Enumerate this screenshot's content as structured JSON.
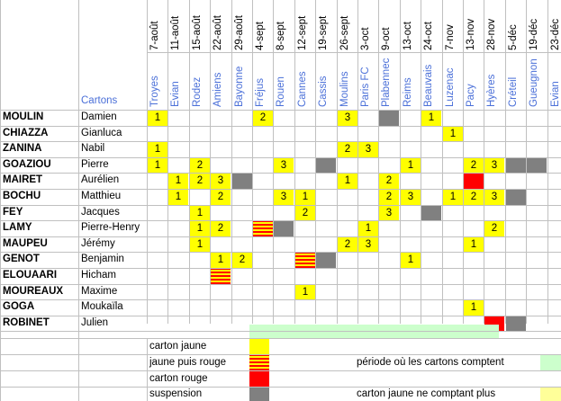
{
  "header": {
    "cartons_label": "Cartons",
    "columns": [
      {
        "date": "7-août",
        "opponent": "Troyes"
      },
      {
        "date": "11-août",
        "opponent": "Evian"
      },
      {
        "date": "15-août",
        "opponent": "Rodez"
      },
      {
        "date": "22-août",
        "opponent": "Amiens"
      },
      {
        "date": "29-août",
        "opponent": "Bayonne"
      },
      {
        "date": "4-sept",
        "opponent": "Fréjus"
      },
      {
        "date": "8-sept",
        "opponent": "Rouen"
      },
      {
        "date": "12-sept",
        "opponent": "Cannes"
      },
      {
        "date": "19-sept",
        "opponent": "Cassis"
      },
      {
        "date": "26-sept",
        "opponent": "Moulins"
      },
      {
        "date": "3-oct",
        "opponent": "Paris FC"
      },
      {
        "date": "9-oct",
        "opponent": "Plabennec"
      },
      {
        "date": "13-oct",
        "opponent": "Reims"
      },
      {
        "date": "24-oct",
        "opponent": "Beauvais"
      },
      {
        "date": "7-nov",
        "opponent": "Luzenac"
      },
      {
        "date": "13-nov",
        "opponent": "Pacy"
      },
      {
        "date": "28-nov",
        "opponent": "Hyères"
      },
      {
        "date": "5-déc",
        "opponent": "Créteil"
      },
      {
        "date": "19-déc",
        "opponent": "Gueugnon"
      },
      {
        "date": "23-déc",
        "opponent": "Evian"
      }
    ]
  },
  "players": [
    {
      "last": "MOULIN",
      "first": "Damien",
      "cells": {
        "0": [
          "y",
          "1"
        ],
        "5": [
          "y",
          "2"
        ],
        "9": [
          "y",
          "3"
        ],
        "11": [
          "g",
          ""
        ],
        "13": [
          "y",
          "1"
        ]
      }
    },
    {
      "last": "CHIAZZA",
      "first": "Gianluca",
      "cells": {
        "14": [
          "y",
          "1"
        ]
      }
    },
    {
      "last": "ZANINA",
      "first": "Nabil",
      "cells": {
        "0": [
          "y",
          "1"
        ],
        "9": [
          "y",
          "2"
        ],
        "10": [
          "y",
          "3"
        ]
      }
    },
    {
      "last": "GOAZIOU",
      "first": "Pierre",
      "cells": {
        "0": [
          "y",
          "1"
        ],
        "2": [
          "y",
          "2"
        ],
        "6": [
          "y",
          "3"
        ],
        "8": [
          "g",
          ""
        ],
        "12": [
          "y",
          "1"
        ],
        "15": [
          "y",
          "2"
        ],
        "16": [
          "y",
          "3"
        ],
        "17": [
          "g",
          ""
        ],
        "18": [
          "g",
          ""
        ]
      }
    },
    {
      "last": "MAIRET",
      "first": "Aurélien",
      "cells": {
        "1": [
          "y",
          "1"
        ],
        "2": [
          "y",
          "2"
        ],
        "3": [
          "y",
          "3"
        ],
        "4": [
          "g",
          ""
        ],
        "9": [
          "y",
          "1"
        ],
        "11": [
          "y",
          "2"
        ],
        "15": [
          "r",
          ""
        ]
      }
    },
    {
      "last": "BOCHU",
      "first": "Matthieu",
      "cells": {
        "1": [
          "y",
          "1"
        ],
        "3": [
          "y",
          "2"
        ],
        "6": [
          "y",
          "3"
        ],
        "7": [
          "y",
          "1"
        ],
        "11": [
          "y",
          "2"
        ],
        "12": [
          "y",
          "3"
        ],
        "14": [
          "y",
          "1"
        ],
        "15": [
          "y",
          "2"
        ],
        "16": [
          "y",
          "3"
        ],
        "17": [
          "g",
          ""
        ]
      }
    },
    {
      "last": "FEY",
      "first": "Jacques",
      "cells": {
        "2": [
          "y",
          "1"
        ],
        "7": [
          "y",
          "2"
        ],
        "11": [
          "y",
          "3"
        ],
        "13": [
          "g",
          ""
        ]
      }
    },
    {
      "last": "LAMY",
      "first": "Pierre-Henry",
      "cells": {
        "2": [
          "y",
          "1"
        ],
        "3": [
          "y",
          "2"
        ],
        "5": [
          "s",
          ""
        ],
        "6": [
          "g",
          ""
        ],
        "10": [
          "y",
          "1"
        ],
        "16": [
          "y",
          "2"
        ]
      }
    },
    {
      "last": "MAUPEU",
      "first": "Jérémy",
      "cells": {
        "2": [
          "y",
          "1"
        ],
        "9": [
          "y",
          "2"
        ],
        "10": [
          "y",
          "3"
        ],
        "15": [
          "y",
          "1"
        ]
      }
    },
    {
      "last": "GENOT",
      "first": "Benjamin",
      "cells": {
        "3": [
          "y",
          "1"
        ],
        "4": [
          "y",
          "2"
        ],
        "7": [
          "s",
          ""
        ],
        "8": [
          "g",
          ""
        ],
        "12": [
          "y",
          "1"
        ]
      }
    },
    {
      "last": "ELOUAARI",
      "first": "Hicham",
      "cells": {
        "3": [
          "s",
          ""
        ]
      }
    },
    {
      "last": "MOUREAUX",
      "first": "Maxime",
      "cells": {
        "7": [
          "y",
          "1"
        ]
      }
    },
    {
      "last": "GOGA",
      "first": "Moukaïla",
      "cells": {
        "15": [
          "y",
          "1"
        ]
      }
    },
    {
      "last": "ROBINET",
      "first": "Julien",
      "cells": {
        "16": [
          "r",
          ""
        ],
        "17": [
          "g",
          ""
        ]
      }
    }
  ],
  "legend": {
    "yellow_label": "carton jaune",
    "yellow_red_label": "jaune puis rouge",
    "red_label": "carton rouge",
    "suspension_label": "suspension",
    "period_label": "période où les cartons comptent",
    "pale_label": "carton jaune ne comptant plus"
  },
  "colors": {
    "yellow": "#ffff00",
    "red": "#ff0000",
    "grey": "#808080",
    "pale_yellow": "#ffff99",
    "period_green": "#ccffcc",
    "opponent_blue": "#4a6fd8"
  }
}
